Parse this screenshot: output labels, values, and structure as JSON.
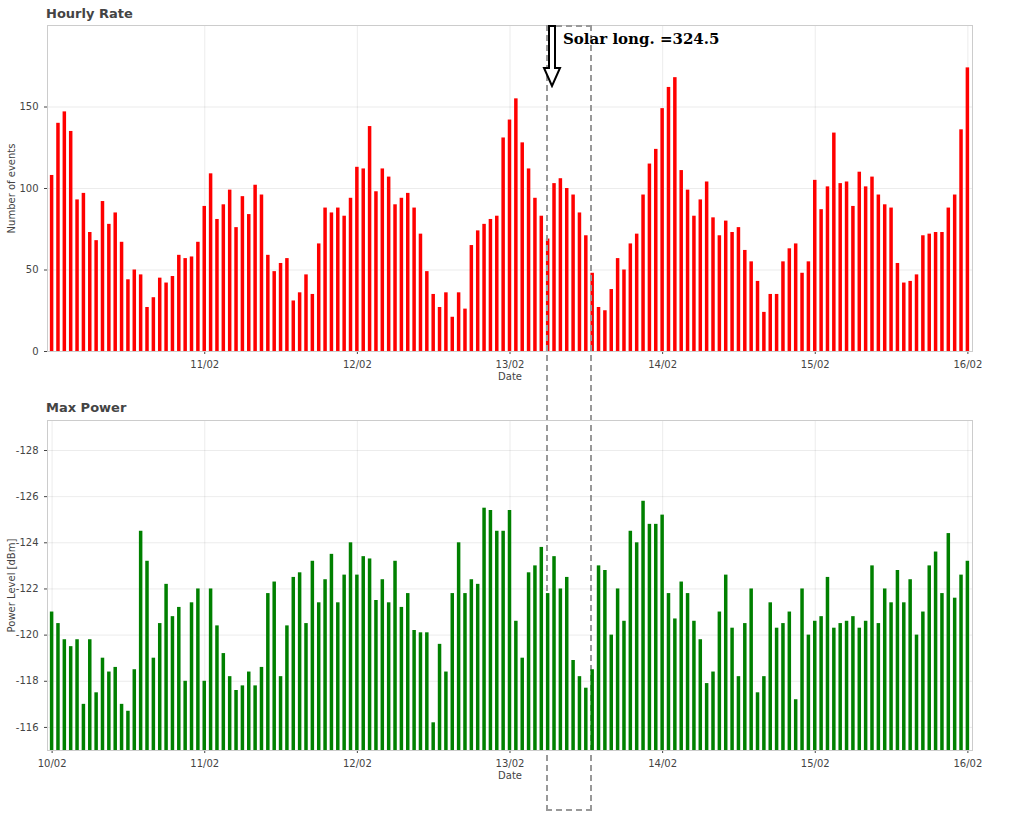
{
  "chart_data": [
    {
      "type": "bar",
      "title": "Hourly Rate",
      "x_label": "Date",
      "y_label": "Number of events",
      "categories": [
        null,
        null,
        null,
        null,
        null,
        null,
        null,
        null,
        null,
        null,
        null,
        null,
        null,
        null,
        null,
        null,
        null,
        null,
        null,
        null,
        null,
        null,
        null,
        null,
        "11/02",
        null,
        null,
        null,
        null,
        null,
        null,
        null,
        null,
        null,
        null,
        null,
        null,
        null,
        null,
        null,
        null,
        null,
        null,
        null,
        null,
        null,
        null,
        null,
        "12/02",
        null,
        null,
        null,
        null,
        null,
        null,
        null,
        null,
        null,
        null,
        null,
        null,
        null,
        null,
        null,
        null,
        null,
        null,
        null,
        null,
        null,
        null,
        null,
        "13/02",
        null,
        null,
        null,
        null,
        null,
        null,
        null,
        null,
        null,
        null,
        null,
        null,
        null,
        null,
        null,
        null,
        null,
        null,
        null,
        null,
        null,
        null,
        null,
        "14/02",
        null,
        null,
        null,
        null,
        null,
        null,
        null,
        null,
        null,
        null,
        null,
        null,
        null,
        null,
        null,
        null,
        null,
        null,
        null,
        null,
        null,
        null,
        null,
        "15/02",
        null,
        null,
        null,
        null,
        null,
        null,
        null,
        null,
        null,
        null,
        null,
        null,
        null,
        null,
        null,
        null,
        null,
        null,
        null,
        null,
        null,
        null,
        null,
        "16/02"
      ],
      "values": [
        108,
        140,
        147,
        135,
        93,
        97,
        73,
        68,
        92,
        78,
        85,
        67,
        44,
        50,
        47,
        27,
        33,
        45,
        42,
        46,
        59,
        57,
        58,
        67,
        89,
        109,
        81,
        90,
        99,
        76,
        95,
        84,
        102,
        96,
        59,
        49,
        54,
        57,
        31,
        36,
        47,
        35,
        66,
        88,
        85,
        88,
        83,
        94,
        113,
        112,
        138,
        98,
        112,
        107,
        90,
        94,
        97,
        88,
        72,
        49,
        35,
        27,
        36,
        21,
        36,
        26,
        65,
        74,
        78,
        81,
        83,
        131,
        142,
        155,
        128,
        112,
        94,
        83,
        69,
        103,
        106,
        100,
        96,
        85,
        71,
        48,
        27,
        25,
        38,
        57,
        50,
        66,
        72,
        96,
        115,
        124,
        149,
        162,
        168,
        111,
        99,
        83,
        93,
        104,
        82,
        71,
        80,
        73,
        76,
        62,
        55,
        43,
        24,
        35,
        35,
        55,
        63,
        66,
        48,
        55,
        105,
        87,
        101,
        134,
        103,
        104,
        89,
        110,
        101,
        107,
        96,
        90,
        88,
        54,
        42,
        43,
        47,
        71,
        72,
        73,
        73,
        88,
        96,
        136,
        174
      ],
      "color": "#ff0000",
      "ylim": [
        0,
        200
      ],
      "yticks": [
        0,
        50,
        100,
        150
      ],
      "grid": true,
      "annotations": [
        {
          "text": "Solar long. =324.5"
        }
      ]
    },
    {
      "type": "bar",
      "title": "Max Power",
      "x_label": "Date",
      "y_label": "Power Level [dBm]",
      "categories": [
        "10/02",
        null,
        null,
        null,
        null,
        null,
        null,
        null,
        null,
        null,
        null,
        null,
        null,
        null,
        null,
        null,
        null,
        null,
        null,
        null,
        null,
        null,
        null,
        null,
        "11/02",
        null,
        null,
        null,
        null,
        null,
        null,
        null,
        null,
        null,
        null,
        null,
        null,
        null,
        null,
        null,
        null,
        null,
        null,
        null,
        null,
        null,
        null,
        null,
        "12/02",
        null,
        null,
        null,
        null,
        null,
        null,
        null,
        null,
        null,
        null,
        null,
        null,
        null,
        null,
        null,
        null,
        null,
        null,
        null,
        null,
        null,
        null,
        null,
        "13/02",
        null,
        null,
        null,
        null,
        null,
        null,
        null,
        null,
        null,
        null,
        null,
        null,
        null,
        null,
        null,
        null,
        null,
        null,
        null,
        null,
        null,
        null,
        null,
        "14/02",
        null,
        null,
        null,
        null,
        null,
        null,
        null,
        null,
        null,
        null,
        null,
        null,
        null,
        null,
        null,
        null,
        null,
        null,
        null,
        null,
        null,
        null,
        null,
        "15/02",
        null,
        null,
        null,
        null,
        null,
        null,
        null,
        null,
        null,
        null,
        null,
        null,
        null,
        null,
        null,
        null,
        null,
        null,
        null,
        null,
        null,
        null,
        null,
        "16/02"
      ],
      "values": [
        -121,
        -120.5,
        -119.8,
        -119.5,
        -119.8,
        -117,
        -119.8,
        -117.5,
        -119,
        -118.4,
        -118.6,
        -117,
        -116.7,
        -118.5,
        -124.5,
        -123.2,
        -119,
        -120.5,
        -122.2,
        -120.8,
        -121.2,
        -118,
        -121.4,
        -122,
        -118,
        -122,
        -120.4,
        -119.2,
        -118.2,
        -117.6,
        -117.8,
        -118.4,
        -117.8,
        -118.6,
        -121.8,
        -122.3,
        -118.2,
        -120.4,
        -122.5,
        -122.7,
        -120.5,
        -123.2,
        -121.4,
        -122.4,
        -123.5,
        -121.4,
        -122.6,
        -124,
        -122.6,
        -123.4,
        -123.3,
        -121.5,
        -122.4,
        -121.4,
        -123.2,
        -121.2,
        -121.8,
        -120.2,
        -120.1,
        -120.1,
        -116.2,
        -119.6,
        -118.4,
        -121.8,
        -124,
        -121.8,
        -122.4,
        -122.2,
        -125.5,
        -125.4,
        -124.5,
        -124.5,
        -125.4,
        -120.6,
        -119,
        -122.7,
        -123,
        -123.8,
        -121.8,
        -123.4,
        -122,
        -122.5,
        -118.9,
        -118.2,
        -117.7,
        -118.5,
        -123,
        -122.8,
        -120,
        -122,
        -120.6,
        -124.5,
        -124,
        -125.8,
        -124.8,
        -124.8,
        -125.2,
        -121.8,
        -120.7,
        -122.3,
        -121.8,
        -120.6,
        -119.8,
        -117.9,
        -118.4,
        -121,
        -122.6,
        -120.3,
        -118.2,
        -120.5,
        -122,
        -117.5,
        -118.2,
        -121.4,
        -120.3,
        -120.5,
        -121,
        -117.2,
        -122,
        -120,
        -120.6,
        -120.8,
        -122.5,
        -120.3,
        -120.5,
        -120.6,
        -120.8,
        -120.3,
        -120.6,
        -123,
        -120.5,
        -122,
        -121.4,
        -122.8,
        -121.4,
        -122.4,
        -120,
        -121,
        -123,
        -123.6,
        -121.8,
        -124.4,
        -121.6,
        -122.6,
        -123.2
      ],
      "color": "#008000",
      "ylim": [
        -115,
        -129.3
      ],
      "yticks": [
        -128,
        -126,
        -124,
        -122,
        -120,
        -118,
        -116
      ],
      "grid": true
    }
  ]
}
